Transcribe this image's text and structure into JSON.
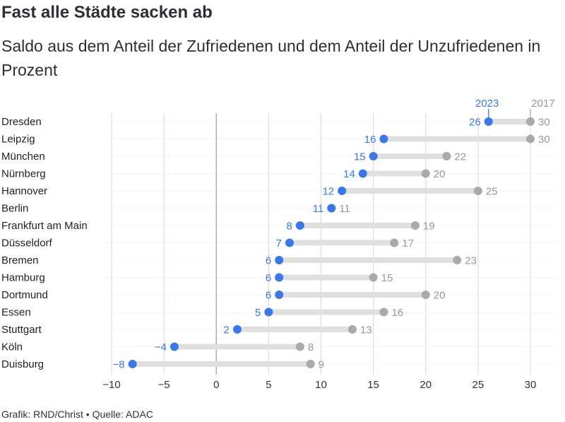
{
  "header": {
    "title": "Fast alle Städte sacken ab",
    "subtitle": "Saldo aus dem Anteil der Zufriedenen und dem Anteil der Unzufriedenen in Prozent"
  },
  "footer": {
    "credit": "Grafik: RND/Christ • Quelle: ADAC"
  },
  "colors": {
    "series_2023": "#3b78e7",
    "series_2017": "#aaaaaa",
    "bar": "#e0e0e0",
    "grid": "#d8d8d8"
  },
  "chart_data": {
    "type": "dot-range",
    "title": "Fast alle Städte sacken ab",
    "subtitle": "Saldo aus dem Anteil der Zufriedenen und dem Anteil der Unzufriedenen in Prozent",
    "xlim": [
      -10,
      30
    ],
    "xticks": [
      -10,
      -5,
      0,
      5,
      10,
      15,
      20,
      25,
      30
    ],
    "xtick_labels": [
      "−10",
      "−5",
      "0",
      "5",
      "10",
      "15",
      "20",
      "25",
      "30"
    ],
    "grid": true,
    "categories": [
      "Dresden",
      "Leipzig",
      "München",
      "Nürnberg",
      "Hannover",
      "Berlin",
      "Frankfurt am Main",
      "Düsseldorf",
      "Bremen",
      "Hamburg",
      "Dortmund",
      "Essen",
      "Stuttgart",
      "Köln",
      "Duisburg"
    ],
    "series": [
      {
        "name": "2023",
        "values": [
          26,
          16,
          15,
          14,
          12,
          11,
          8,
          7,
          6,
          6,
          6,
          5,
          2,
          -4,
          -8
        ],
        "labels": [
          "26",
          "16",
          "15",
          "14",
          "12",
          "11",
          "8",
          "7",
          "6",
          "6",
          "6",
          "5",
          "2",
          "−4",
          "−8"
        ]
      },
      {
        "name": "2017",
        "values": [
          30,
          30,
          22,
          20,
          25,
          11,
          19,
          17,
          23,
          15,
          20,
          16,
          13,
          8,
          9
        ],
        "labels": [
          "30",
          "30",
          "22",
          "20",
          "25",
          "11",
          "19",
          "17",
          "23",
          "15",
          "20",
          "16",
          "13",
          "8",
          "9"
        ]
      }
    ]
  }
}
